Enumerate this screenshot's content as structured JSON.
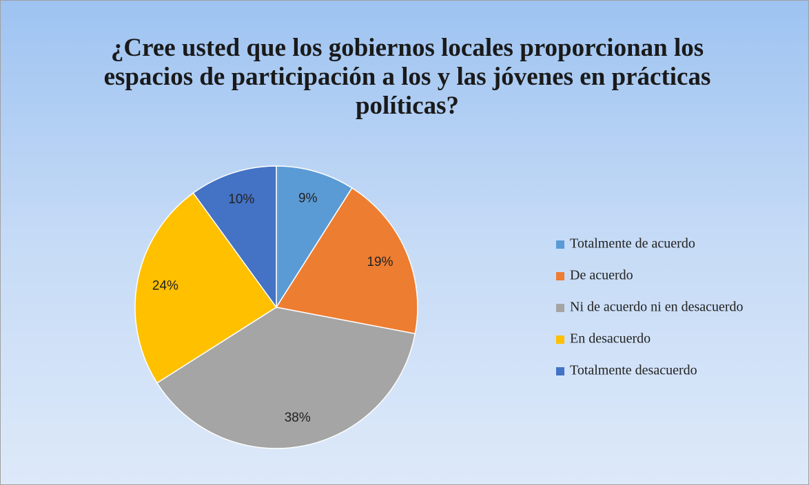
{
  "chart_data": {
    "type": "pie",
    "title": "¿Cree usted que los gobiernos locales proporcionan los espacios de participación a los y las jóvenes en prácticas políticas?",
    "categories": [
      "Totalmente de acuerdo",
      "De acuerdo",
      "Ni de acuerdo ni en desacuerdo",
      "En desacuerdo",
      "Totalmente desacuerdo"
    ],
    "values": [
      9,
      19,
      38,
      24,
      10
    ],
    "value_labels": [
      "9%",
      "19%",
      "38%",
      "24%",
      "10%"
    ],
    "colors": [
      "#5b9bd5",
      "#ed7d31",
      "#a5a5a5",
      "#ffc000",
      "#4472c4"
    ],
    "legend": "right"
  }
}
